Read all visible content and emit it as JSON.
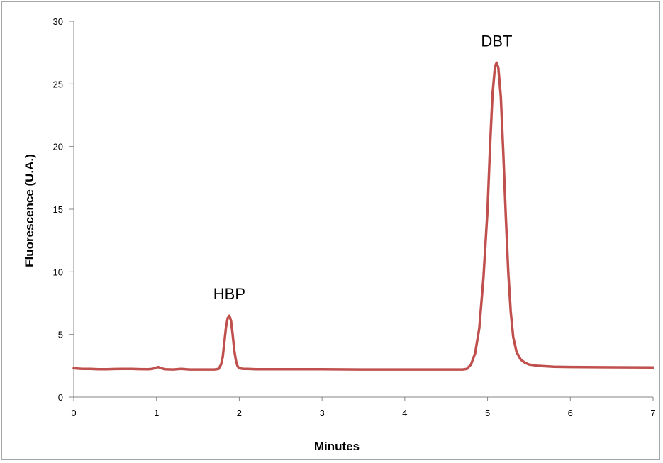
{
  "chart_data": {
    "type": "line",
    "title": "",
    "xlabel": "Minutes",
    "ylabel": "Fluorescence (U.A.)",
    "xlim": [
      0,
      7
    ],
    "ylim": [
      0,
      30
    ],
    "x_ticks": [
      0,
      1,
      2,
      3,
      4,
      5,
      6,
      7
    ],
    "y_ticks": [
      0,
      5,
      10,
      15,
      20,
      25,
      30
    ],
    "grid": false,
    "legend": "none",
    "series": [
      {
        "color": "#c0504d",
        "x": [
          0,
          0.1,
          0.2,
          0.3,
          0.4,
          0.5,
          0.6,
          0.7,
          0.8,
          0.9,
          0.95,
          1.0,
          1.02,
          1.05,
          1.1,
          1.2,
          1.3,
          1.4,
          1.5,
          1.6,
          1.7,
          1.75,
          1.78,
          1.8,
          1.82,
          1.84,
          1.86,
          1.88,
          1.9,
          1.92,
          1.94,
          1.96,
          1.98,
          2.0,
          2.05,
          2.1,
          2.2,
          2.5,
          3.0,
          3.5,
          4.0,
          4.5,
          4.7,
          4.75,
          4.8,
          4.85,
          4.9,
          4.95,
          5.0,
          5.03,
          5.06,
          5.09,
          5.11,
          5.13,
          5.16,
          5.19,
          5.22,
          5.25,
          5.28,
          5.31,
          5.35,
          5.4,
          5.45,
          5.5,
          5.6,
          5.8,
          6.0,
          6.5,
          7.0
        ],
        "y": [
          2.3,
          2.25,
          2.25,
          2.22,
          2.22,
          2.24,
          2.25,
          2.25,
          2.23,
          2.22,
          2.25,
          2.35,
          2.4,
          2.32,
          2.22,
          2.2,
          2.25,
          2.2,
          2.2,
          2.2,
          2.2,
          2.25,
          2.6,
          3.2,
          4.4,
          5.6,
          6.3,
          6.5,
          6.1,
          5.0,
          3.7,
          2.9,
          2.45,
          2.3,
          2.25,
          2.25,
          2.22,
          2.22,
          2.22,
          2.2,
          2.2,
          2.2,
          2.2,
          2.25,
          2.6,
          3.5,
          5.5,
          9.5,
          15.0,
          20.0,
          24.2,
          26.4,
          26.7,
          26.3,
          24.0,
          19.5,
          14.5,
          10.0,
          6.8,
          4.8,
          3.6,
          3.0,
          2.75,
          2.6,
          2.5,
          2.42,
          2.4,
          2.38,
          2.36
        ]
      }
    ],
    "annotations": [
      {
        "text": "HBP",
        "x": 1.88,
        "y": 6.5
      },
      {
        "text": "DBT",
        "x": 5.11,
        "y": 26.7
      }
    ]
  }
}
